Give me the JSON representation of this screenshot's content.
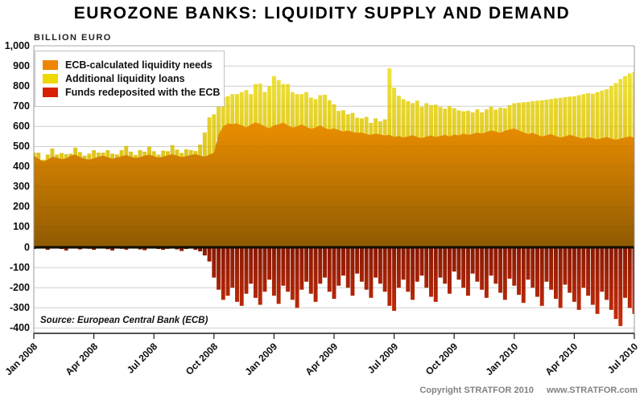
{
  "title": "EUROZONE BANKS: LIQUIDITY SUPPLY AND DEMAND",
  "axis_unit_label": "BILLION EURO",
  "source_note": "Source: European Central Bank (ECB)",
  "footer": {
    "copyright": "Copyright STRATFOR 2010",
    "website": "www.STRATFOR.com"
  },
  "colors": {
    "background": "#ffffff",
    "gridline": "#dcdcdc",
    "plot_border": "#999999",
    "zero_line": "#150f02",
    "axis_line": "#1a1a1a",
    "orange_gradient_top": "#f59400",
    "orange_gradient_bottom": "#8d5902",
    "yellow_gradient_top": "#f2ec42",
    "yellow_gradient_bottom": "#d0a300",
    "red_gradient_top": "#8c1a02",
    "red_gradient_bottom": "#cf2f0c"
  },
  "chart_data": {
    "type": "area",
    "stacked": true,
    "title": "EUROZONE BANKS: LIQUIDITY SUPPLY AND DEMAND",
    "ylabel": "BILLION EURO",
    "ylim": [
      -400,
      1000
    ],
    "ytick_step": 100,
    "grid": true,
    "legend_position": "top-left",
    "x_unit": "weekly, Jan 2008 - Jul 2010",
    "x_ticks": [
      "Jan 2008",
      "Apr 2008",
      "Jul 2008",
      "Oct 2008",
      "Jan 2009",
      "Apr 2009",
      "Jul 2009",
      "Oct 2009",
      "Jan 2010",
      "Apr 2010",
      "Jul 2010"
    ],
    "series": [
      {
        "name": "ECB-calculated liquidity needs",
        "color": "#ee8500",
        "values": [
          455,
          440,
          425,
          435,
          450,
          445,
          438,
          442,
          455,
          460,
          448,
          440,
          435,
          442,
          450,
          455,
          447,
          440,
          446,
          452,
          458,
          450,
          443,
          448,
          455,
          460,
          452,
          445,
          450,
          457,
          462,
          455,
          448,
          452,
          458,
          463,
          455,
          450,
          460,
          470,
          560,
          600,
          615,
          612,
          615,
          605,
          595,
          610,
          620,
          612,
          600,
          590,
          605,
          610,
          620,
          605,
          595,
          600,
          610,
          598,
          588,
          595,
          605,
          592,
          585,
          590,
          582,
          575,
          580,
          572,
          568,
          570,
          562,
          558,
          565,
          560,
          555,
          558,
          548,
          552,
          545,
          550,
          556,
          548,
          542,
          550,
          555,
          548,
          552,
          558,
          550,
          560,
          555,
          565,
          558,
          562,
          570,
          565,
          572,
          580,
          575,
          568,
          578,
          585,
          590,
          580,
          570,
          562,
          568,
          558,
          550,
          556,
          562,
          552,
          545,
          550,
          558,
          552,
          545,
          540,
          548,
          542,
          536,
          542,
          548,
          540,
          534,
          540,
          546,
          550,
          545
        ]
      },
      {
        "name": "Additional liquidity loans",
        "color": "#edd900",
        "values": [
          15,
          30,
          10,
          25,
          40,
          15,
          30,
          20,
          10,
          35,
          25,
          15,
          30,
          40,
          20,
          15,
          35,
          25,
          15,
          30,
          45,
          25,
          15,
          35,
          20,
          40,
          25,
          15,
          30,
          20,
          45,
          30,
          20,
          35,
          25,
          15,
          55,
          120,
          185,
          190,
          160,
          145,
          135,
          148,
          145,
          165,
          185,
          150,
          190,
          200,
          170,
          210,
          245,
          220,
          190,
          205,
          175,
          160,
          150,
          172,
          155,
          140,
          150,
          165,
          145,
          120,
          95,
          105,
          80,
          95,
          75,
          70,
          85,
          60,
          75,
          65,
          80,
          330,
          245,
          200,
          190,
          175,
          160,
          180,
          155,
          165,
          150,
          160,
          145,
          130,
          150,
          130,
          125,
          110,
          120,
          108,
          115,
          105,
          112,
          118,
          108,
          125,
          112,
          120,
          125,
          138,
          150,
          160,
          157,
          170,
          180,
          177,
          174,
          188,
          197,
          195,
          190,
          198,
          210,
          220,
          217,
          220,
          234,
          236,
          237,
          260,
          281,
          295,
          304,
          312,
          325
        ]
      },
      {
        "name": "Funds redeposited with the ECB",
        "color": "#d82000",
        "values": [
          -8,
          -4,
          -6,
          -12,
          -3,
          -5,
          -8,
          -15,
          -4,
          -6,
          -10,
          -5,
          -7,
          -12,
          -6,
          -4,
          -9,
          -15,
          -5,
          -7,
          -11,
          -6,
          -4,
          -10,
          -14,
          -6,
          -5,
          -8,
          -12,
          -7,
          -5,
          -10,
          -18,
          -8,
          -6,
          -12,
          -20,
          -40,
          -70,
          -150,
          -210,
          -260,
          -240,
          -200,
          -270,
          -290,
          -230,
          -180,
          -250,
          -285,
          -220,
          -160,
          -240,
          -280,
          -190,
          -220,
          -260,
          -300,
          -210,
          -170,
          -230,
          -270,
          -180,
          -150,
          -220,
          -255,
          -190,
          -140,
          -200,
          -240,
          -130,
          -170,
          -210,
          -250,
          -150,
          -180,
          -220,
          -290,
          -315,
          -200,
          -160,
          -220,
          -260,
          -170,
          -140,
          -200,
          -245,
          -270,
          -150,
          -180,
          -230,
          -120,
          -160,
          -200,
          -240,
          -130,
          -170,
          -210,
          -250,
          -140,
          -180,
          -225,
          -260,
          -155,
          -190,
          -235,
          -275,
          -160,
          -200,
          -245,
          -290,
          -170,
          -210,
          -255,
          -300,
          -185,
          -225,
          -270,
          -310,
          -200,
          -240,
          -285,
          -330,
          -220,
          -260,
          -310,
          -355,
          -390,
          -250,
          -300,
          -330
        ]
      }
    ]
  }
}
